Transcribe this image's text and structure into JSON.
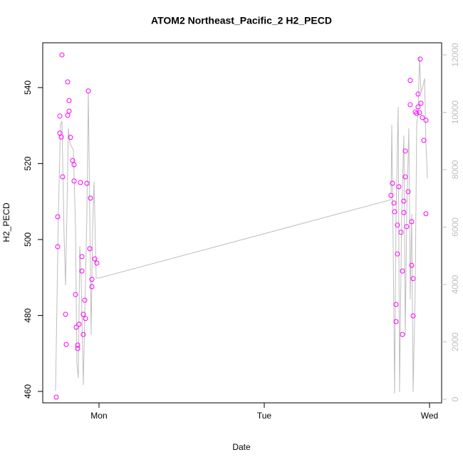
{
  "chart_data": {
    "type": "scatter",
    "title": "ATOM2 Northeast_Pacific_2 H2_PECD",
    "xlabel": "Date",
    "ylabel": "H2_PECD",
    "xlim": [
      -8.17,
      49.76
    ],
    "ylim": [
      457.0,
      551.8
    ],
    "y2lim": [
      -124,
      12422
    ],
    "xticks": [
      {
        "value": 0,
        "label": "Mon"
      },
      {
        "value": 24,
        "label": "Tue"
      },
      {
        "value": 48,
        "label": "Wed"
      }
    ],
    "yticks": [
      460,
      480,
      500,
      520,
      540
    ],
    "y2ticks": [
      0,
      2000,
      4000,
      6000,
      8000,
      10000,
      12000
    ],
    "series": [
      {
        "type": "scatter",
        "color": "#ff00ff",
        "x": [
          -6.21,
          -6.0,
          -6.0,
          -5.69,
          -5.69,
          -5.48,
          -5.38,
          -5.28,
          -4.86,
          -4.76,
          -4.55,
          -4.55,
          -4.34,
          -4.34,
          -4.14,
          -3.83,
          -3.62,
          -3.62,
          -3.41,
          -3.31,
          -3.1,
          -3.1,
          -2.9,
          -2.69,
          -2.48,
          -2.48,
          -2.28,
          -2.28,
          -2.07,
          -1.97,
          -1.76,
          -1.55,
          -1.34,
          -1.24,
          -1.03,
          -1.03,
          -0.62,
          -0.31,
          42.41,
          42.62,
          42.83,
          42.93,
          43.14,
          43.14,
          43.34,
          43.34,
          43.55,
          43.86,
          44.07,
          44.07,
          44.27,
          44.27,
          44.48,
          44.48,
          44.69,
          44.9,
          45.2,
          45.2,
          45.41,
          45.41,
          45.62,
          45.62,
          45.93,
          46.14,
          46.34,
          46.34,
          46.55,
          46.65,
          46.76,
          46.96,
          47.17,
          47.48,
          47.48
        ],
        "values": [
          458.5,
          506,
          498.1,
          532.5,
          528,
          527,
          548.6,
          516.5,
          480.3,
          472.4,
          541.5,
          532.7,
          536.6,
          533.8,
          526.9,
          520.8,
          519.7,
          515.4,
          485.5,
          476.9,
          472.2,
          471.3,
          477.7,
          515,
          495.5,
          491.7,
          480.3,
          475,
          484,
          479.2,
          514.8,
          539.1,
          497.6,
          510.9,
          489.5,
          487.6,
          494.9,
          493.8,
          511.6,
          514.8,
          509.6,
          507.3,
          482.9,
          478.4,
          503.8,
          496.2,
          513.9,
          501.9,
          491.7,
          475,
          510.1,
          507.1,
          523.3,
          516.5,
          503.4,
          512.6,
          541.9,
          535.5,
          504.7,
          493.2,
          489.7,
          479.9,
          533.6,
          533.2,
          538.3,
          534.9,
          533.4,
          547.5,
          535.9,
          532.1,
          526.1,
          531.4,
          506.8
        ]
      },
      {
        "type": "line",
        "color": "#bebebe",
        "axis": "y2",
        "x": [
          -6.31,
          -5.9,
          -5.59,
          -5.38,
          -5.07,
          -4.86,
          -4.66,
          -4.45,
          -4.24,
          -4.03,
          -3.72,
          -3.41,
          -3.21,
          -3.0,
          -2.79,
          -2.59,
          -2.28,
          -1.97,
          -1.76,
          -1.55,
          -1.34,
          -1.14,
          -0.93,
          -0.72,
          -0.41,
          0,
          42.41,
          42.52,
          42.72,
          42.93,
          43.14,
          43.45,
          43.65,
          43.96,
          44.27,
          44.48,
          44.69,
          45.0,
          45.2,
          45.41,
          45.62,
          45.93,
          46.14,
          46.34,
          46.55,
          46.76,
          47.07,
          47.28,
          47.48,
          47.69
        ],
        "values": [
          298,
          6460,
          9565,
          9690,
          5715,
          3975,
          6460,
          9440,
          8945,
          8820,
          8695,
          5960,
          1240,
          745,
          5340,
          4225,
          497,
          3975,
          6460,
          10680,
          6460,
          2235,
          5960,
          7575,
          4225,
          4225,
          6955,
          9565,
          5465,
          199,
          6460,
          10185,
          248,
          6460,
          9190,
          2235,
          6460,
          9440,
          3478,
          6460,
          248,
          3975,
          9565,
          10060,
          11925,
          10680,
          10930,
          11180,
          8945,
          7700
        ]
      }
    ]
  }
}
